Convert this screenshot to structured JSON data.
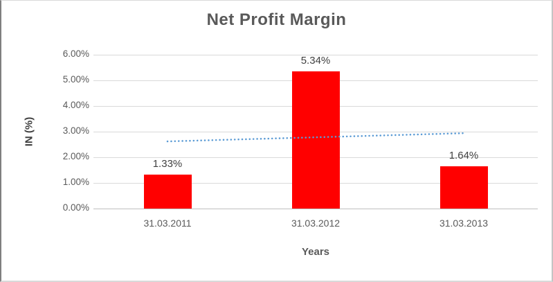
{
  "chart_data": {
    "type": "bar",
    "title": "Net Profit Margin",
    "xlabel": "Years",
    "ylabel": "IN (%)",
    "categories": [
      "31.03.2011",
      "31.03.2012",
      "31.03.2013"
    ],
    "values": [
      1.33,
      5.34,
      1.64
    ],
    "data_labels": [
      "1.33%",
      "5.34%",
      "1.64%"
    ],
    "y_ticks": [
      "0.00%",
      "1.00%",
      "2.00%",
      "3.00%",
      "4.00%",
      "5.00%",
      "6.00%"
    ],
    "y_tick_values": [
      0,
      1,
      2,
      3,
      4,
      5,
      6
    ],
    "ylim": [
      0,
      6
    ],
    "grid": true,
    "legend": false,
    "bar_color": "#FF0000",
    "gridline_color": "#D9D9D9",
    "axis_line_color": "#BFBFBF",
    "title_color": "#595959",
    "text_color": "#595959",
    "data_label_color": "#404040",
    "trendline": {
      "style": "dotted",
      "color": "#5B9BD5",
      "start_value": 2.62,
      "end_value": 2.94
    }
  }
}
